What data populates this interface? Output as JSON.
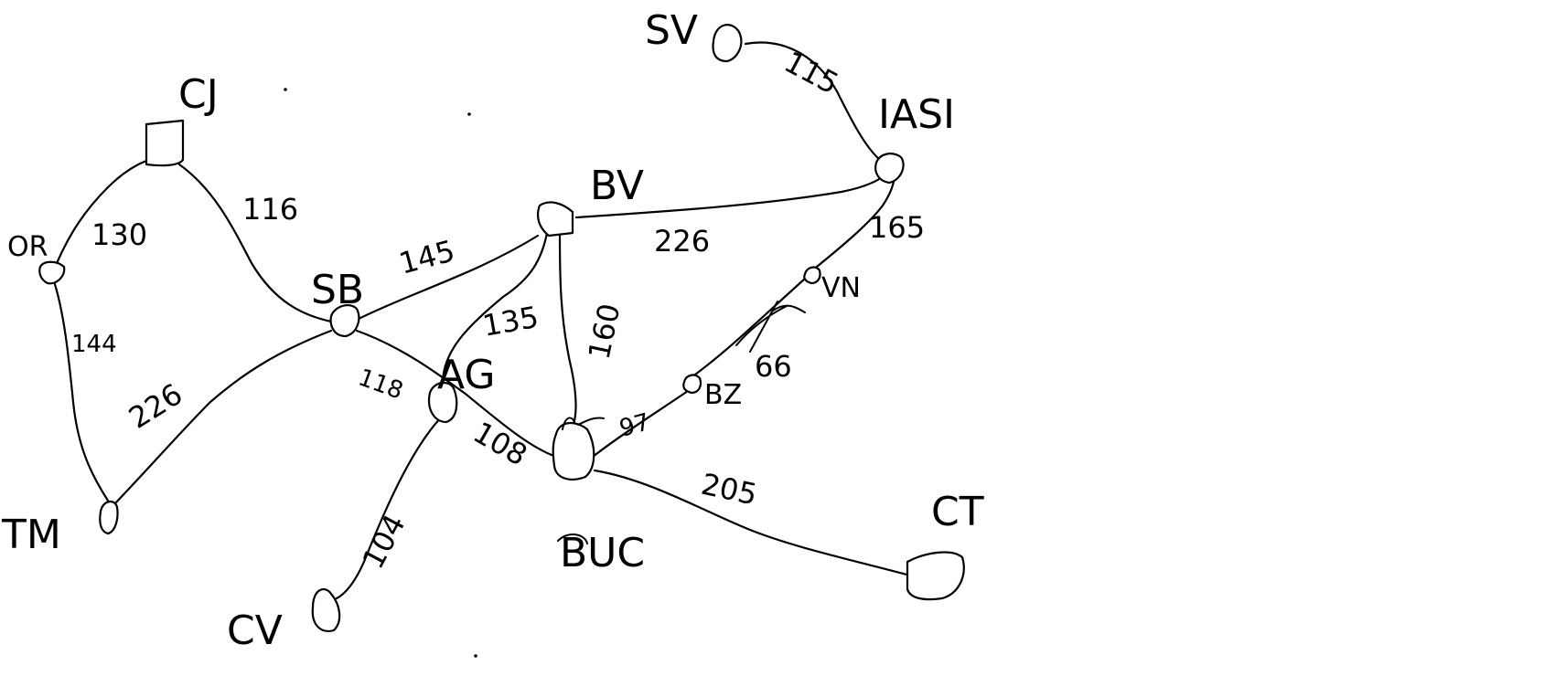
{
  "graph": {
    "nodes": [
      {
        "id": "CJ",
        "label": "CJ"
      },
      {
        "id": "OR",
        "label": "OR"
      },
      {
        "id": "TM",
        "label": "TM"
      },
      {
        "id": "SB",
        "label": "SB"
      },
      {
        "id": "AG",
        "label": "AG"
      },
      {
        "id": "CV",
        "label": "CV"
      },
      {
        "id": "BV",
        "label": "BV"
      },
      {
        "id": "BUC",
        "label": "BUC"
      },
      {
        "id": "CT",
        "label": "CT"
      },
      {
        "id": "BZ",
        "label": "BZ"
      },
      {
        "id": "VN",
        "label": "VN"
      },
      {
        "id": "IASI",
        "label": "IASI"
      },
      {
        "id": "SV",
        "label": "SV"
      }
    ],
    "edges": [
      {
        "id": "or-cj",
        "from": "OR",
        "to": "CJ",
        "weight": "130"
      },
      {
        "id": "cj-sb",
        "from": "CJ",
        "to": "SB",
        "weight": "116"
      },
      {
        "id": "or-tm",
        "from": "OR",
        "to": "TM",
        "weight": "144"
      },
      {
        "id": "tm-sb",
        "from": "TM",
        "to": "SB",
        "weight": "226"
      },
      {
        "id": "sb-bv",
        "from": "SB",
        "to": "BV",
        "weight": "145"
      },
      {
        "id": "sb-buc",
        "from": "SB",
        "to": "BUC",
        "weight": "118"
      },
      {
        "id": "ag-bv",
        "from": "AG",
        "to": "BV",
        "weight": "135"
      },
      {
        "id": "ag-buc",
        "from": "AG",
        "to": "BUC",
        "weight": "108"
      },
      {
        "id": "ag-cv",
        "from": "AG",
        "to": "CV",
        "weight": "104"
      },
      {
        "id": "bv-buc",
        "from": "BV",
        "to": "BUC",
        "weight": "160"
      },
      {
        "id": "bv-iasi",
        "from": "BV",
        "to": "IASI",
        "weight": "226"
      },
      {
        "id": "sv-iasi",
        "from": "SV",
        "to": "IASI",
        "weight": "115"
      },
      {
        "id": "buc-bz",
        "from": "BUC",
        "to": "BZ",
        "weight": "97"
      },
      {
        "id": "bz-vn",
        "from": "BZ",
        "to": "VN",
        "weight": "66"
      },
      {
        "id": "vn-iasi",
        "from": "VN",
        "to": "IASI",
        "weight": "165"
      },
      {
        "id": "buc-ct",
        "from": "BUC",
        "to": "CT",
        "weight": "205"
      }
    ]
  }
}
